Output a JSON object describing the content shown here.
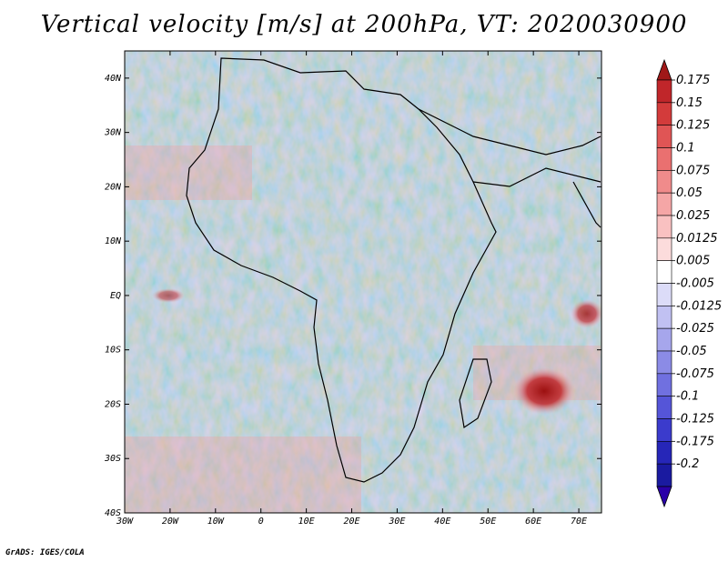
{
  "title": "Vertical velocity [m/s] at 200hPa, VT: 2020030900",
  "credit": "GrADS: IGES/COLA",
  "map": {
    "projection": "latlon",
    "lon_range": [
      -30,
      75
    ],
    "lat_range": [
      -40,
      45
    ],
    "lon_ticks": [
      "30W",
      "20W",
      "10W",
      "0",
      "10E",
      "20E",
      "30E",
      "40E",
      "50E",
      "60E",
      "70E"
    ],
    "lat_ticks": [
      "40S",
      "30S",
      "20S",
      "10S",
      "EQ",
      "10N",
      "20N",
      "30N",
      "40N"
    ],
    "field": "vertical velocity",
    "level": "200hPa",
    "units": "m/s"
  },
  "colorbar": {
    "labels": [
      "0.175",
      "0.15",
      "0.125",
      "0.1",
      "0.075",
      "0.05",
      "0.025",
      "0.0125",
      "0.005",
      "-0.005",
      "-0.0125",
      "-0.025",
      "-0.05",
      "-0.075",
      "-0.1",
      "-0.125",
      "-0.175",
      "-0.2"
    ],
    "colors": [
      "#c0262a",
      "#d33b3b",
      "#e05555",
      "#ea7070",
      "#f08b8b",
      "#f5a6a6",
      "#f9c1c1",
      "#fcdcdc",
      "#ffffff",
      "#dcdcf8",
      "#c1c1f2",
      "#a6a6ec",
      "#8b8be6",
      "#7070e0",
      "#5555d8",
      "#3b3bcc",
      "#2626b8",
      "#1a1aa0"
    ],
    "top_arrow_color": "#a01818",
    "bottom_arrow_color": "#2a00a8"
  }
}
